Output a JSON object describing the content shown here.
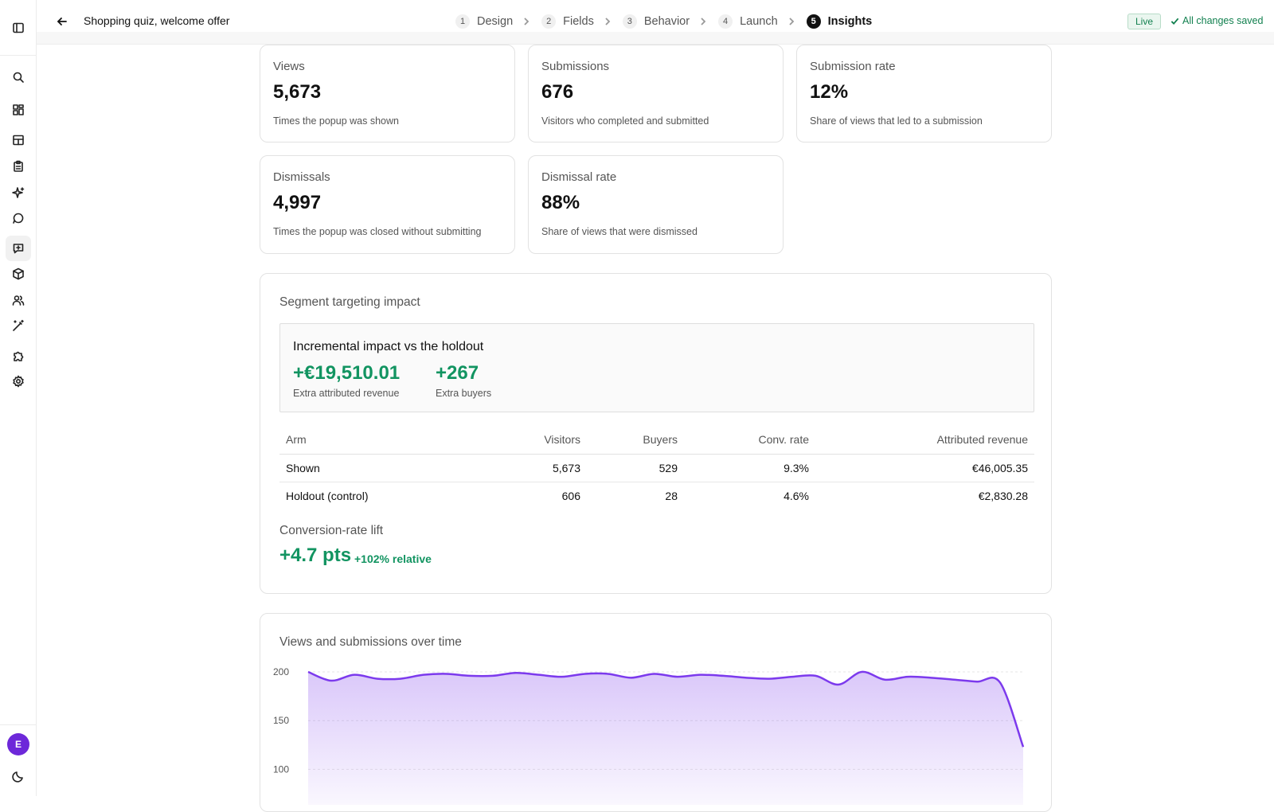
{
  "header": {
    "title": "Shopping quiz, welcome offer",
    "steps": [
      {
        "num": "1",
        "label": "Design"
      },
      {
        "num": "2",
        "label": "Fields"
      },
      {
        "num": "3",
        "label": "Behavior"
      },
      {
        "num": "4",
        "label": "Launch"
      },
      {
        "num": "5",
        "label": "Insights"
      }
    ],
    "status_badge": "Live",
    "saved_status": "All changes saved"
  },
  "sidebar": {
    "icons": [
      "panel-toggle-icon",
      "search-icon",
      "dashboard-icon",
      "layout-icon",
      "clipboard-icon",
      "sparkles-icon",
      "chat-icon",
      "message-square-icon",
      "box-icon",
      "users-icon",
      "magic-wand-icon",
      "puzzle-icon",
      "settings-icon"
    ],
    "avatar_initial": "E"
  },
  "stats": [
    {
      "label": "Views",
      "value": "5,673",
      "desc": "Times the popup was shown"
    },
    {
      "label": "Submissions",
      "value": "676",
      "desc": "Visitors who completed and submitted"
    },
    {
      "label": "Submission rate",
      "value": "12%",
      "desc": "Share of views that led to a submission"
    },
    {
      "label": "Dismissals",
      "value": "4,997",
      "desc": "Times the popup was closed without submitting"
    },
    {
      "label": "Dismissal rate",
      "value": "88%",
      "desc": "Share of views that were dismissed"
    }
  ],
  "segment": {
    "title": "Segment targeting impact",
    "impact_title": "Incremental impact vs the holdout",
    "revenue_value": "+€19,510.01",
    "revenue_label": "Extra attributed revenue",
    "buyers_value": "+267",
    "buyers_label": "Extra buyers",
    "columns": [
      "Arm",
      "Visitors",
      "Buyers",
      "Conv. rate",
      "Attributed revenue"
    ],
    "rows": [
      [
        "Shown",
        "5,673",
        "529",
        "9.3%",
        "€46,005.35"
      ],
      [
        "Holdout (control)",
        "606",
        "28",
        "4.6%",
        "€2,830.28"
      ]
    ],
    "lift_title": "Conversion-rate lift",
    "lift_value": "+4.7 pts",
    "lift_relative": "+102% relative"
  },
  "chart_data": {
    "type": "area",
    "title": "Views and submissions over time",
    "y_ticks": [
      "200",
      "150",
      "100"
    ],
    "ylim": [
      80,
      205
    ],
    "grid": true,
    "color": "#7c3aed",
    "values": [
      200,
      191,
      197,
      193,
      193,
      197,
      198,
      196,
      196,
      199,
      197,
      195,
      198,
      198,
      194,
      198,
      195,
      197,
      196,
      194,
      193,
      195,
      196,
      187,
      200,
      192,
      195,
      194,
      192,
      190,
      189,
      123
    ]
  }
}
